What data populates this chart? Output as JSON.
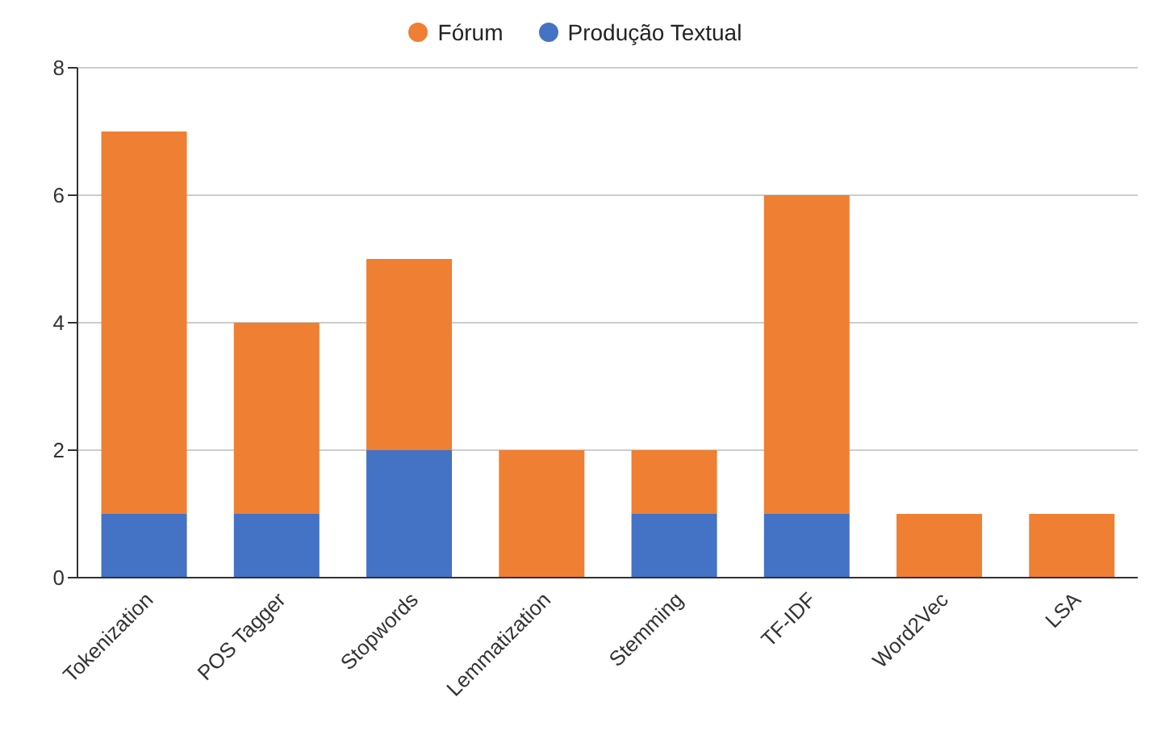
{
  "chart_data": {
    "type": "bar",
    "stacked": true,
    "categories": [
      "Tokenization",
      "POS Tagger",
      "Stopwords",
      "Lemmatization",
      "Stemming",
      "TF-IDF",
      "Word2Vec",
      "LSA"
    ],
    "series": [
      {
        "name": "Produção Textual",
        "color": "#4472c4",
        "values": [
          1,
          1,
          2,
          0,
          1,
          1,
          0,
          0
        ]
      },
      {
        "name": "Fórum",
        "color": "#ef7f32",
        "values": [
          6,
          3,
          3,
          2,
          1,
          5,
          1,
          1
        ]
      }
    ],
    "ylim": [
      0,
      8
    ],
    "yticks": [
      0,
      2,
      4,
      6,
      8
    ],
    "grid": "y",
    "legend": "top"
  }
}
